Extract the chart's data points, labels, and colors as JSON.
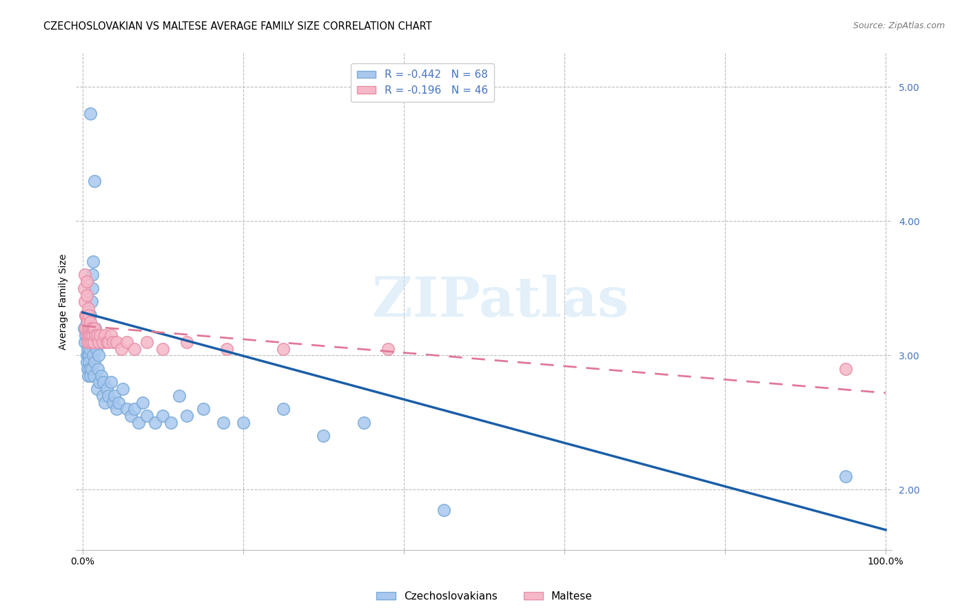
{
  "title": "CZECHOSLOVAKIAN VS MALTESE AVERAGE FAMILY SIZE CORRELATION CHART",
  "source": "Source: ZipAtlas.com",
  "ylabel": "Average Family Size",
  "ylim": [
    1.55,
    5.25
  ],
  "xlim": [
    -0.008,
    1.008
  ],
  "yticks": [
    2.0,
    3.0,
    4.0,
    5.0
  ],
  "xticks": [
    0.0,
    0.2,
    0.4,
    0.6,
    0.8,
    1.0
  ],
  "xticklabels": [
    "0.0%",
    "",
    "",
    "",
    "",
    "100.0%"
  ],
  "legend_line1_r": "R = ",
  "legend_line1_rv": "-0.442",
  "legend_line1_n": "  N = ",
  "legend_line1_nv": "68",
  "legend_line2_r": "R = ",
  "legend_line2_rv": "-0.196",
  "legend_line2_n": "  N = ",
  "legend_line2_nv": "46",
  "blue_color": "#A8C8EE",
  "pink_color": "#F5B8C8",
  "blue_edge_color": "#7AAAD8",
  "pink_edge_color": "#E890A8",
  "blue_line_color": "#1A5EA8",
  "pink_line_color": "#E07898",
  "watermark_text": "ZIPatlas",
  "title_fontsize": 10.5,
  "label_fontsize": 10,
  "tick_fontsize": 10,
  "source_fontsize": 9,
  "czecho_x": [
    0.002,
    0.003,
    0.004,
    0.004,
    0.005,
    0.005,
    0.005,
    0.006,
    0.006,
    0.006,
    0.007,
    0.007,
    0.007,
    0.008,
    0.008,
    0.008,
    0.009,
    0.009,
    0.01,
    0.01,
    0.01,
    0.011,
    0.011,
    0.012,
    0.012,
    0.013,
    0.013,
    0.014,
    0.015,
    0.015,
    0.016,
    0.017,
    0.018,
    0.019,
    0.02,
    0.021,
    0.022,
    0.023,
    0.025,
    0.026,
    0.028,
    0.03,
    0.032,
    0.035,
    0.038,
    0.04,
    0.042,
    0.045,
    0.05,
    0.055,
    0.06,
    0.065,
    0.07,
    0.075,
    0.08,
    0.09,
    0.1,
    0.11,
    0.12,
    0.13,
    0.15,
    0.175,
    0.2,
    0.25,
    0.3,
    0.35,
    0.45,
    0.95
  ],
  "czecho_y": [
    3.2,
    3.1,
    3.3,
    3.15,
    3.25,
    3.0,
    2.95,
    3.05,
    2.9,
    3.1,
    3.0,
    2.85,
    3.2,
    3.0,
    2.95,
    3.1,
    2.9,
    3.05,
    4.8,
    3.3,
    2.85,
    3.4,
    2.9,
    3.6,
    3.5,
    3.7,
    3.0,
    2.85,
    4.3,
    2.95,
    3.2,
    3.05,
    2.75,
    2.9,
    3.0,
    2.8,
    3.1,
    2.85,
    2.7,
    2.8,
    2.65,
    2.75,
    2.7,
    2.8,
    2.65,
    2.7,
    2.6,
    2.65,
    2.75,
    2.6,
    2.55,
    2.6,
    2.5,
    2.65,
    2.55,
    2.5,
    2.55,
    2.5,
    2.7,
    2.55,
    2.6,
    2.5,
    2.5,
    2.6,
    2.4,
    2.5,
    1.85,
    2.1
  ],
  "maltese_x": [
    0.002,
    0.003,
    0.003,
    0.004,
    0.004,
    0.005,
    0.005,
    0.005,
    0.006,
    0.006,
    0.006,
    0.007,
    0.007,
    0.008,
    0.008,
    0.009,
    0.009,
    0.01,
    0.01,
    0.011,
    0.011,
    0.012,
    0.013,
    0.014,
    0.015,
    0.016,
    0.018,
    0.02,
    0.022,
    0.025,
    0.028,
    0.03,
    0.032,
    0.035,
    0.038,
    0.042,
    0.048,
    0.055,
    0.065,
    0.08,
    0.1,
    0.13,
    0.18,
    0.25,
    0.38,
    0.95
  ],
  "maltese_y": [
    3.5,
    3.6,
    3.4,
    3.3,
    3.2,
    3.55,
    3.45,
    3.3,
    3.25,
    3.15,
    3.1,
    3.35,
    3.2,
    3.3,
    3.15,
    3.2,
    3.1,
    3.25,
    3.15,
    3.2,
    3.1,
    3.15,
    3.2,
    3.1,
    3.2,
    3.15,
    3.15,
    3.1,
    3.15,
    3.1,
    3.15,
    3.1,
    3.1,
    3.15,
    3.1,
    3.1,
    3.05,
    3.1,
    3.05,
    3.1,
    3.05,
    3.1,
    3.05,
    3.05,
    3.05,
    2.9
  ],
  "blue_trend_x0": 0.0,
  "blue_trend_y0": 3.32,
  "blue_trend_x1": 1.0,
  "blue_trend_y1": 1.7,
  "pink_trend_x0": 0.0,
  "pink_trend_y0": 3.22,
  "pink_trend_x1": 1.0,
  "pink_trend_y1": 2.72
}
